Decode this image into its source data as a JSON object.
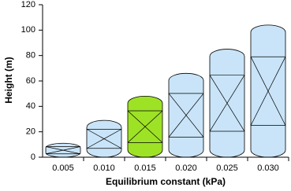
{
  "chart_data": {
    "type": "bar",
    "x_label": "Equilibrium constant (kPa)",
    "y_label": "Height (m)",
    "categories": [
      "0.005",
      "0.010",
      "0.015",
      "0.020",
      "0.025",
      "0.030"
    ],
    "values": [
      11,
      29,
      48,
      66,
      85,
      104
    ],
    "colors": [
      "#c9e4f8",
      "#c9e4f8",
      "#9ee226",
      "#c9e4f8",
      "#c9e4f8",
      "#c9e4f8"
    ],
    "ylim": [
      0,
      120
    ],
    "yticks": [
      0,
      20,
      40,
      60,
      80,
      100,
      120
    ]
  }
}
